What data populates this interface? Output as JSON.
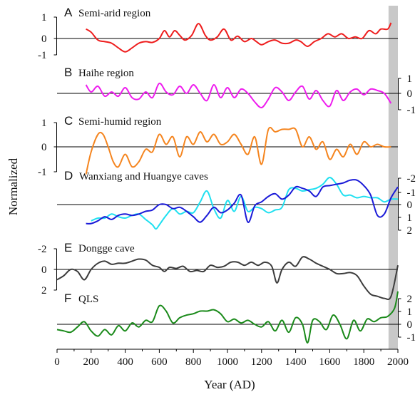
{
  "chart_data": {
    "type": "line",
    "ylabel": "Normalized",
    "xlabel": "Year (AD)",
    "xlim": [
      0,
      2000
    ],
    "x_ticks": [
      "0",
      "200",
      "400",
      "600",
      "800",
      "1000",
      "1200",
      "1400",
      "1600",
      "1800",
      "2000"
    ],
    "shaded_band": {
      "from": 1945,
      "to": 2000,
      "color": "#c8c8c8"
    },
    "panels": [
      {
        "letter": "A",
        "title": "Semi-arid region",
        "axis_side": "left",
        "ticks": [
          "1",
          "0",
          "-1"
        ],
        "series": [
          {
            "color": "#ee1c1c",
            "x": [
              170,
              200,
              240,
              280,
              320,
              360,
              400,
              440,
              480,
              520,
              560,
              600,
              630,
              660,
              690,
              720,
              750,
              790,
              830,
              870,
              900,
              940,
              980,
              1020,
              1060,
              1100,
              1140,
              1170,
              1200,
              1240,
              1280,
              1320,
              1360,
              1400,
              1430,
              1470,
              1510,
              1550,
              1590,
              1630,
              1670,
              1710,
              1750,
              1790,
              1830,
              1870,
              1900,
              1940,
              1960
            ],
            "y": [
              0.6,
              0.4,
              -0.1,
              -0.2,
              -0.3,
              -0.6,
              -0.85,
              -0.6,
              -0.3,
              -0.2,
              -0.25,
              0.0,
              0.5,
              0.1,
              0.5,
              0.2,
              -0.1,
              0.2,
              0.95,
              0.2,
              -0.1,
              0.1,
              0.6,
              -0.1,
              0.15,
              -0.2,
              0.0,
              -0.2,
              -0.4,
              -0.2,
              -0.1,
              -0.3,
              -0.3,
              -0.1,
              -0.2,
              -0.5,
              -0.2,
              0.0,
              0.3,
              0.1,
              0.3,
              0.0,
              0.1,
              0.0,
              0.5,
              0.3,
              0.6,
              0.6,
              1.0
            ]
          }
        ]
      },
      {
        "letter": "B",
        "title": "Haihe region",
        "axis_side": "right",
        "ticks": [
          "1",
          "0",
          "-1"
        ],
        "series": [
          {
            "color": "#ee1cee",
            "x": [
              170,
              200,
              240,
              280,
              320,
              360,
              400,
              440,
              480,
              520,
              560,
              600,
              640,
              680,
              720,
              760,
              800,
              840,
              880,
              920,
              960,
              1000,
              1040,
              1080,
              1120,
              1160,
              1200,
              1240,
              1280,
              1320,
              1360,
              1400,
              1440,
              1480,
              1520,
              1560,
              1600,
              1640,
              1680,
              1720,
              1760,
              1800,
              1840,
              1880,
              1920,
              1960
            ],
            "y": [
              0.6,
              0.1,
              0.5,
              -0.2,
              0.1,
              -0.2,
              0.4,
              -0.3,
              -0.4,
              0.1,
              -0.3,
              0.7,
              0.1,
              -0.1,
              0.5,
              0.0,
              0.6,
              0.0,
              -0.5,
              0.6,
              -0.3,
              0.4,
              -0.3,
              0.3,
              0.0,
              -0.6,
              -1.0,
              -0.4,
              0.4,
              0.1,
              -0.5,
              0.1,
              0.5,
              -0.4,
              0.2,
              -0.5,
              -0.9,
              0.2,
              -0.5,
              0.1,
              0.3,
              -0.1,
              0.3,
              0.2,
              0.0,
              -0.7
            ]
          }
        ]
      },
      {
        "letter": "C",
        "title": "Semi-humid region",
        "axis_side": "left",
        "ticks": [
          "1",
          "0",
          "-1"
        ],
        "series": [
          {
            "color": "#f5851f",
            "x": [
              170,
              200,
              240,
              270,
              300,
              330,
              360,
              400,
              440,
              480,
              520,
              560,
              600,
              640,
              680,
              720,
              760,
              800,
              840,
              880,
              920,
              960,
              1000,
              1040,
              1080,
              1120,
              1160,
              1200,
              1240,
              1280,
              1320,
              1360,
              1400,
              1440,
              1480,
              1520,
              1560,
              1600,
              1640,
              1680,
              1720,
              1760,
              1800,
              1840,
              1880,
              1920,
              1960
            ],
            "y": [
              -1.1,
              -0.2,
              0.5,
              0.5,
              0.0,
              -0.6,
              -0.8,
              -0.3,
              -0.8,
              -0.6,
              -0.1,
              -0.2,
              0.5,
              0.1,
              0.4,
              -0.4,
              0.4,
              0.1,
              0.6,
              0.2,
              0.5,
              0.1,
              0.2,
              0.5,
              0.1,
              -0.3,
              0.4,
              -0.7,
              0.7,
              0.6,
              0.7,
              0.7,
              0.7,
              0.0,
              0.4,
              -0.1,
              0.2,
              -0.5,
              -0.1,
              -0.4,
              0.1,
              -0.3,
              0.2,
              0.0,
              0.1,
              0.0,
              0.0
            ]
          }
        ]
      },
      {
        "letter": "D",
        "title": "Wanxiang and Huangye caves",
        "axis_side": "right",
        "ticks": [
          "-2",
          "-1",
          "0",
          "1",
          "2"
        ],
        "series": [
          {
            "color": "#20e0f0",
            "x": [
              200,
              240,
              280,
              320,
              360,
              400,
              440,
              480,
              520,
              560,
              580,
              600,
              640,
              680,
              720,
              760,
              800,
              840,
              880,
              920,
              960,
              1000,
              1040,
              1080,
              1120,
              1160,
              1200,
              1240,
              1280,
              1320,
              1360,
              1400,
              1440,
              1480,
              1520,
              1560,
              1600,
              1640,
              1680,
              1720,
              1760,
              1800,
              1840,
              1880,
              1920,
              1960,
              2000
            ],
            "y": [
              -1.2,
              -1.0,
              -1.0,
              -0.7,
              -0.9,
              -1.0,
              -0.8,
              -0.7,
              -1.1,
              -1.5,
              -1.8,
              -1.5,
              -0.8,
              -0.3,
              -0.7,
              -0.5,
              -0.6,
              0.2,
              1.0,
              -0.3,
              -1.0,
              0.3,
              -0.5,
              0.6,
              -0.5,
              -0.2,
              -0.3,
              -0.6,
              -0.4,
              -0.2,
              1.1,
              1.2,
              1.0,
              1.1,
              1.2,
              1.5,
              2.0,
              1.5,
              0.7,
              0.7,
              0.5,
              0.6,
              0.5,
              0.5,
              0.2,
              0.4,
              0.4
            ]
          },
          {
            "color": "#1a1ad8",
            "x": [
              170,
              200,
              240,
              280,
              320,
              360,
              400,
              440,
              480,
              520,
              560,
              600,
              640,
              680,
              720,
              760,
              800,
              840,
              880,
              920,
              960,
              1000,
              1040,
              1080,
              1120,
              1160,
              1200,
              1240,
              1280,
              1320,
              1360,
              1400,
              1440,
              1480,
              1520,
              1560,
              1600,
              1640,
              1680,
              1720,
              1760,
              1800,
              1840,
              1880,
              1920,
              1960,
              2000
            ],
            "y": [
              -1.4,
              -1.4,
              -1.2,
              -0.9,
              -1.1,
              -0.8,
              -0.7,
              -0.8,
              -0.7,
              -0.5,
              -0.4,
              0.0,
              0.0,
              -0.3,
              -0.2,
              -0.5,
              -0.9,
              -1.3,
              -0.8,
              -0.2,
              -0.6,
              -0.4,
              0.1,
              0.7,
              -1.3,
              -0.1,
              0.2,
              0.6,
              0.8,
              0.4,
              0.7,
              1.3,
              1.2,
              1.0,
              0.6,
              1.3,
              1.4,
              1.5,
              1.6,
              1.8,
              1.8,
              1.4,
              0.7,
              -0.8,
              -0.7,
              0.5,
              1.3
            ]
          }
        ]
      },
      {
        "letter": "E",
        "title": "Dongge cave",
        "axis_side": "left",
        "ticks": [
          "-2",
          "0",
          "2"
        ],
        "series": [
          {
            "color": "#3c3c3c",
            "x": [
              0,
              40,
              80,
              120,
              160,
              200,
              240,
              280,
              320,
              360,
              400,
              440,
              480,
              520,
              560,
              600,
              630,
              660,
              700,
              740,
              780,
              820,
              860,
              900,
              940,
              980,
              1020,
              1060,
              1100,
              1140,
              1180,
              1220,
              1260,
              1290,
              1320,
              1360,
              1400,
              1440,
              1480,
              1520,
              1560,
              1600,
              1640,
              1680,
              1720,
              1760,
              1800,
              1840,
              1880,
              1920,
              1960,
              2000
            ],
            "y": [
              -1.0,
              -0.6,
              0.0,
              -0.2,
              -1.0,
              0.0,
              0.6,
              0.8,
              0.5,
              0.6,
              0.6,
              0.8,
              1.0,
              0.9,
              0.4,
              0.2,
              -0.2,
              0.2,
              0.1,
              0.3,
              -0.2,
              -0.1,
              -0.2,
              0.4,
              0.2,
              0.3,
              0.7,
              0.7,
              0.4,
              0.7,
              0.4,
              0.7,
              0.3,
              -1.3,
              0.0,
              0.7,
              0.3,
              1.2,
              1.0,
              0.6,
              0.3,
              0.0,
              -0.4,
              -0.4,
              -0.3,
              -0.6,
              -1.6,
              -2.4,
              -2.6,
              -2.8,
              -2.6,
              0.4
            ]
          }
        ]
      },
      {
        "letter": "F",
        "title": "QLS",
        "axis_side": "right",
        "ticks": [
          "2",
          "1",
          "0",
          "-1"
        ],
        "series": [
          {
            "color": "#1a8a1a",
            "x": [
              0,
              40,
              80,
              120,
              160,
              200,
              240,
              280,
              320,
              360,
              400,
              440,
              480,
              520,
              560,
              600,
              640,
              680,
              720,
              760,
              800,
              840,
              880,
              920,
              960,
              1000,
              1040,
              1080,
              1120,
              1160,
              1200,
              1240,
              1280,
              1320,
              1360,
              1400,
              1440,
              1470,
              1500,
              1540,
              1580,
              1620,
              1660,
              1700,
              1740,
              1780,
              1820,
              1860,
              1900,
              1940,
              1980,
              2000
            ],
            "y": [
              -0.4,
              -0.5,
              -0.6,
              -0.2,
              0.2,
              -0.5,
              -0.9,
              -0.4,
              -0.8,
              -0.1,
              -0.5,
              0.1,
              -0.2,
              0.3,
              0.2,
              1.4,
              1.0,
              0.1,
              0.5,
              0.7,
              0.8,
              1.0,
              1.0,
              1.1,
              0.8,
              0.2,
              0.4,
              0.1,
              0.3,
              0.0,
              -0.2,
              0.2,
              -0.5,
              0.3,
              -0.6,
              0.5,
              0.0,
              -1.4,
              0.3,
              0.2,
              -0.4,
              0.7,
              0.0,
              -1.1,
              0.3,
              -0.5,
              0.4,
              0.2,
              0.5,
              0.6,
              1.2,
              2.5
            ]
          }
        ]
      }
    ]
  }
}
